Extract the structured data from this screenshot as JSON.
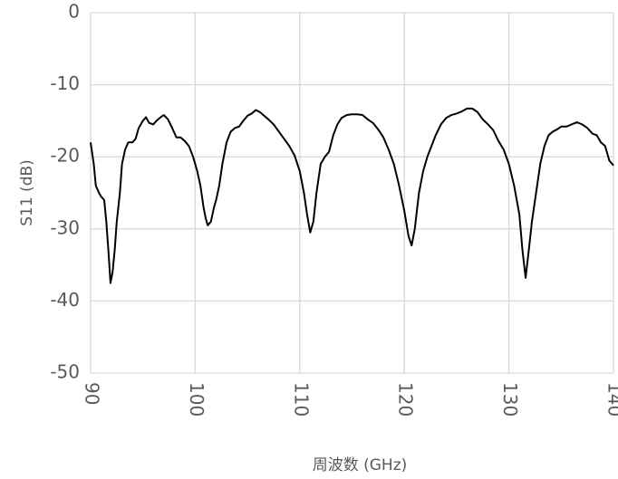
{
  "chart_data": {
    "type": "line",
    "xlabel": "周波数 (GHz)",
    "ylabel": "S11 (dB)",
    "xlim": [
      90,
      140
    ],
    "xticks": [
      90,
      100,
      110,
      120,
      130,
      140
    ],
    "ylim": [
      -50,
      0
    ],
    "yticks": [
      0,
      -10,
      -20,
      -30,
      -40,
      -50
    ],
    "grid": true,
    "x": [
      90,
      90.3,
      90.5,
      90.8,
      91,
      91.3,
      91.5,
      91.7,
      91.9,
      92.1,
      92.3,
      92.5,
      92.8,
      93,
      93.3,
      93.6,
      94,
      94.3,
      94.6,
      95,
      95.3,
      95.6,
      96,
      96.3,
      96.7,
      97,
      97.4,
      97.8,
      98.2,
      98.6,
      99,
      99.4,
      99.8,
      100.2,
      100.5,
      100.8,
      101,
      101.2,
      101.5,
      101.8,
      102,
      102.3,
      102.6,
      103,
      103.4,
      103.8,
      104.2,
      104.6,
      105,
      105.4,
      105.8,
      106.2,
      106.6,
      107,
      107.5,
      108,
      108.5,
      109,
      109.5,
      110,
      110.4,
      110.7,
      111,
      111.3,
      111.6,
      112,
      112.4,
      112.8,
      113.2,
      113.6,
      114,
      114.5,
      115,
      115.5,
      116,
      116.5,
      117,
      117.5,
      118,
      118.5,
      119,
      119.5,
      120,
      120.4,
      120.7,
      121,
      121.4,
      121.8,
      122.2,
      122.6,
      123,
      123.5,
      124,
      124.5,
      125,
      125.5,
      126,
      126.5,
      127,
      127.5,
      128,
      128.5,
      129,
      129.5,
      130,
      130.5,
      131,
      131.3,
      131.6,
      131.9,
      132.2,
      132.6,
      133,
      133.4,
      133.8,
      134.2,
      134.6,
      135,
      135.5,
      136,
      136.5,
      137,
      137.5,
      138,
      138.4,
      138.8,
      139.2,
      139.6,
      140
    ],
    "series": [
      {
        "color": "#000000",
        "values": [
          -18,
          -21,
          -24,
          -25,
          -25.5,
          -26,
          -29,
          -33,
          -37.5,
          -36,
          -33,
          -29,
          -25,
          -21,
          -19,
          -18,
          -18,
          -17.5,
          -16,
          -15,
          -14.5,
          -15.3,
          -15.5,
          -15,
          -14.5,
          -14.2,
          -14.8,
          -16,
          -17.3,
          -17.3,
          -17.8,
          -18.5,
          -20,
          -22,
          -24,
          -27,
          -28.5,
          -29.5,
          -29,
          -27,
          -26,
          -24,
          -21,
          -18,
          -16.5,
          -16,
          -15.8,
          -15,
          -14.3,
          -14,
          -13.5,
          -13.8,
          -14.3,
          -14.8,
          -15.5,
          -16.5,
          -17.5,
          -18.5,
          -19.8,
          -22,
          -25,
          -28,
          -30.5,
          -29,
          -25,
          -21,
          -20,
          -19.3,
          -17,
          -15.5,
          -14.6,
          -14.2,
          -14.1,
          -14.1,
          -14.2,
          -14.8,
          -15.3,
          -16.2,
          -17.3,
          -19,
          -21,
          -24,
          -27.5,
          -31,
          -32.3,
          -30,
          -25,
          -22,
          -20,
          -18.5,
          -17,
          -15.5,
          -14.6,
          -14.2,
          -14,
          -13.7,
          -13.3,
          -13.3,
          -13.8,
          -14.8,
          -15.5,
          -16.3,
          -17.8,
          -19,
          -21,
          -24,
          -28,
          -33,
          -36.8,
          -33,
          -29,
          -25,
          -21,
          -18.5,
          -17,
          -16.5,
          -16.2,
          -15.8,
          -15.8,
          -15.5,
          -15.2,
          -15.5,
          -16,
          -16.8,
          -17,
          -18,
          -18.5,
          -20.5,
          -21.2
        ]
      }
    ]
  }
}
